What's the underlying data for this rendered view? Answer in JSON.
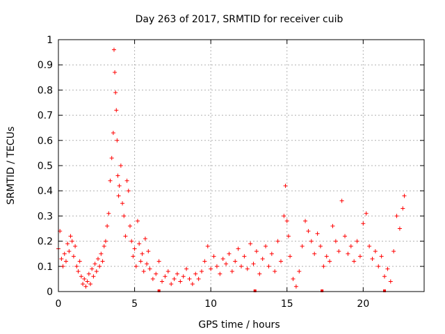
{
  "chart_data": {
    "type": "scatter",
    "title": "Day 263 of 2017, SRMTID for receiver cuib",
    "xlabel": "GPS time / hours",
    "ylabel": "SRMTID / TECUs",
    "xlim": [
      0,
      24
    ],
    "ylim": [
      0,
      1
    ],
    "grid": true,
    "marker": "+",
    "marker_color": "#ff0000",
    "xticks": [
      0,
      5,
      10,
      15,
      20
    ],
    "xtick_labels": [
      "0",
      "5",
      "10",
      "15",
      "20"
    ],
    "yticks": [
      0,
      0.1,
      0.2,
      0.3,
      0.4,
      0.5,
      0.6,
      0.7,
      0.8,
      0.9,
      1
    ],
    "ytick_labels": [
      "0",
      "0.1",
      "0.2",
      "0.3",
      "0.4",
      "0.5",
      "0.6",
      "0.7",
      "0.8",
      "0.9",
      "1"
    ],
    "series": [
      {
        "name": "SRMTID",
        "x": [
          0.0,
          0.1,
          0.2,
          0.3,
          0.4,
          0.5,
          0.6,
          0.7,
          0.8,
          0.9,
          1.0,
          1.1,
          1.2,
          1.3,
          1.4,
          1.5,
          1.6,
          1.7,
          1.8,
          1.9,
          2.0,
          2.1,
          2.2,
          2.3,
          2.4,
          2.5,
          2.6,
          2.7,
          2.8,
          2.9,
          3.0,
          3.1,
          3.2,
          3.3,
          3.4,
          3.5,
          3.6,
          3.65,
          3.7,
          3.75,
          3.8,
          3.85,
          3.9,
          3.95,
          4.0,
          4.1,
          4.2,
          4.3,
          4.4,
          4.5,
          4.6,
          4.7,
          4.8,
          4.9,
          5.0,
          5.1,
          5.2,
          5.3,
          5.4,
          5.5,
          5.6,
          5.7,
          5.8,
          5.9,
          6.0,
          6.2,
          6.4,
          6.6,
          6.8,
          7.0,
          7.2,
          7.4,
          7.6,
          7.8,
          8.0,
          8.2,
          8.4,
          8.6,
          8.8,
          9.0,
          9.2,
          9.4,
          9.6,
          9.8,
          10.0,
          10.2,
          10.4,
          10.6,
          10.8,
          11.0,
          11.2,
          11.4,
          11.6,
          11.8,
          12.0,
          12.2,
          12.4,
          12.6,
          12.8,
          13.0,
          13.2,
          13.4,
          13.6,
          13.8,
          14.0,
          14.2,
          14.4,
          14.6,
          14.8,
          14.9,
          15.0,
          15.1,
          15.2,
          15.4,
          15.6,
          15.8,
          16.0,
          16.2,
          16.4,
          16.6,
          16.8,
          17.0,
          17.2,
          17.4,
          17.6,
          17.8,
          18.0,
          18.2,
          18.4,
          18.6,
          18.8,
          19.0,
          19.2,
          19.4,
          19.6,
          19.8,
          20.0,
          20.2,
          20.4,
          20.6,
          20.8,
          21.0,
          21.2,
          21.4,
          21.6,
          21.8,
          22.0,
          22.2,
          22.4,
          22.6,
          22.7
        ],
        "y": [
          0.17,
          0.24,
          0.13,
          0.1,
          0.15,
          0.12,
          0.19,
          0.16,
          0.22,
          0.2,
          0.14,
          0.18,
          0.1,
          0.08,
          0.12,
          0.06,
          0.03,
          0.05,
          0.02,
          0.04,
          0.07,
          0.03,
          0.09,
          0.06,
          0.11,
          0.08,
          0.13,
          0.1,
          0.15,
          0.12,
          0.18,
          0.2,
          0.26,
          0.31,
          0.44,
          0.53,
          0.63,
          0.96,
          0.87,
          0.79,
          0.72,
          0.6,
          0.46,
          0.38,
          0.42,
          0.5,
          0.35,
          0.3,
          0.22,
          0.44,
          0.4,
          0.26,
          0.2,
          0.14,
          0.17,
          0.1,
          0.28,
          0.19,
          0.12,
          0.15,
          0.08,
          0.21,
          0.11,
          0.16,
          0.09,
          0.05,
          0.07,
          0.12,
          0.04,
          0.06,
          0.08,
          0.03,
          0.05,
          0.07,
          0.04,
          0.06,
          0.09,
          0.05,
          0.03,
          0.07,
          0.05,
          0.08,
          0.12,
          0.18,
          0.09,
          0.14,
          0.1,
          0.07,
          0.13,
          0.11,
          0.15,
          0.08,
          0.12,
          0.17,
          0.1,
          0.14,
          0.09,
          0.19,
          0.11,
          0.16,
          0.07,
          0.13,
          0.18,
          0.1,
          0.15,
          0.08,
          0.2,
          0.12,
          0.3,
          0.42,
          0.28,
          0.22,
          0.14,
          0.05,
          0.02,
          0.08,
          0.18,
          0.28,
          0.24,
          0.2,
          0.15,
          0.23,
          0.18,
          0.1,
          0.14,
          0.12,
          0.26,
          0.2,
          0.16,
          0.36,
          0.22,
          0.15,
          0.18,
          0.12,
          0.2,
          0.14,
          0.27,
          0.31,
          0.18,
          0.13,
          0.16,
          0.1,
          0.14,
          0.06,
          0.09,
          0.04,
          0.16,
          0.3,
          0.25,
          0.33,
          0.38
        ]
      }
    ],
    "zero_markers_x": [
      6.6,
      12.9,
      17.3,
      21.4
    ]
  }
}
